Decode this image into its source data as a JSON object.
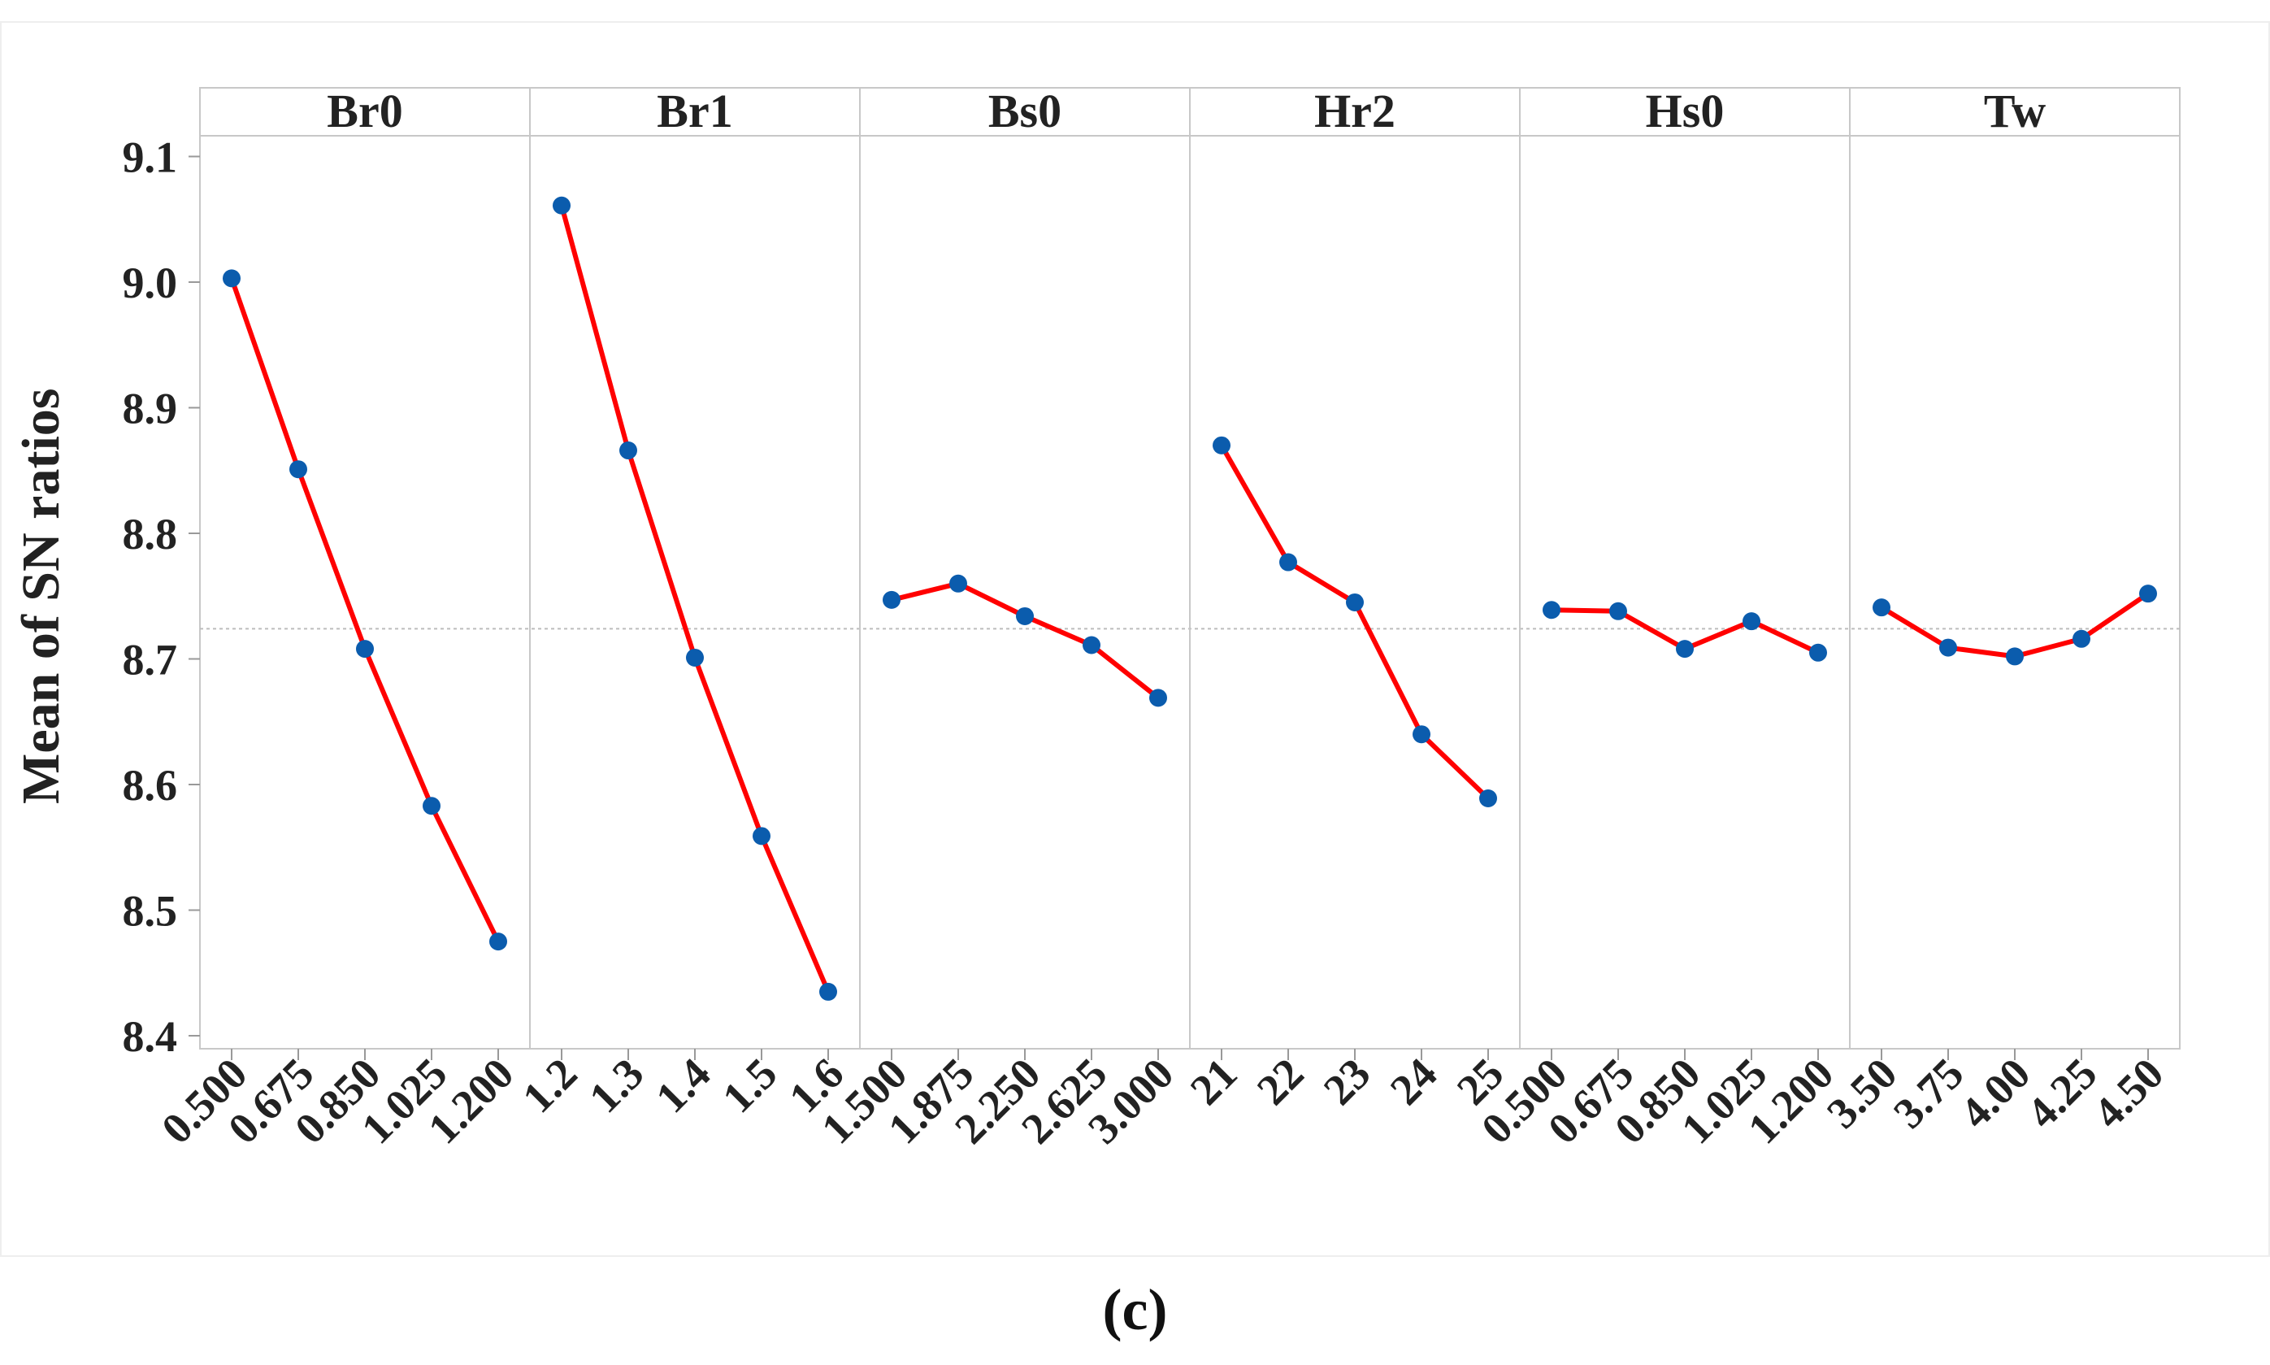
{
  "chart_data": {
    "type": "line",
    "ylabel": "Mean of SN ratios",
    "ylim": [
      8.4,
      9.1
    ],
    "yticks": [
      "8.4",
      "8.5",
      "8.6",
      "8.7",
      "8.8",
      "8.9",
      "9.0",
      "9.1"
    ],
    "reference_line": 8.724,
    "line_color": "#ff0000",
    "marker_color": "#0b5cad",
    "panels": [
      {
        "title": "Br0",
        "x": [
          "0.500",
          "0.675",
          "0.850",
          "1.025",
          "1.200"
        ],
        "values": [
          9.003,
          8.851,
          8.708,
          8.583,
          8.475
        ]
      },
      {
        "title": "Br1",
        "x": [
          "1.2",
          "1.3",
          "1.4",
          "1.5",
          "1.6"
        ],
        "values": [
          9.061,
          8.866,
          8.701,
          8.559,
          8.435
        ]
      },
      {
        "title": "Bs0",
        "x": [
          "1.500",
          "1.875",
          "2.250",
          "2.625",
          "3.000"
        ],
        "values": [
          8.747,
          8.76,
          8.734,
          8.711,
          8.669
        ]
      },
      {
        "title": "Hr2",
        "x": [
          "21",
          "22",
          "23",
          "24",
          "25"
        ],
        "values": [
          8.87,
          8.777,
          8.745,
          8.64,
          8.589
        ]
      },
      {
        "title": "Hs0",
        "x": [
          "0.500",
          "0.675",
          "0.850",
          "1.025",
          "1.200"
        ],
        "values": [
          8.739,
          8.738,
          8.708,
          8.73,
          8.705
        ]
      },
      {
        "title": "Tw",
        "x": [
          "3.50",
          "3.75",
          "4.00",
          "4.25",
          "4.50"
        ],
        "values": [
          8.741,
          8.709,
          8.702,
          8.716,
          8.752
        ]
      }
    ]
  },
  "caption": "(c)"
}
